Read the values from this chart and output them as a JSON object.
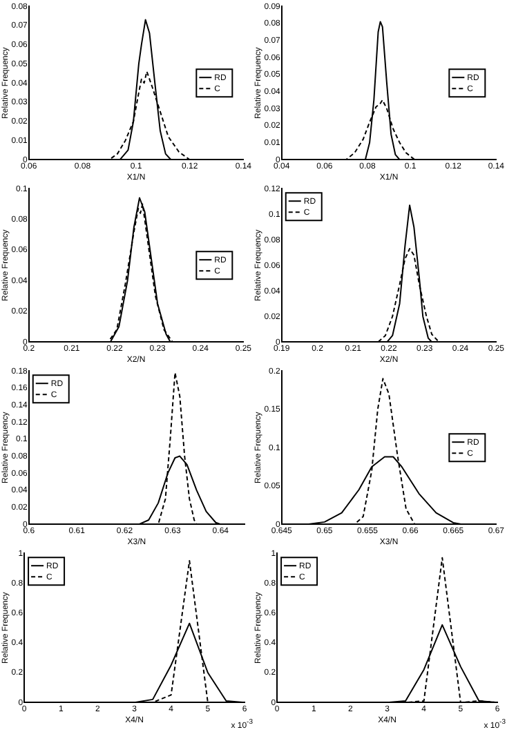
{
  "chart_data": [
    {
      "type": "line",
      "xlabel": "X1/N",
      "ylabel": "Relative Frequency",
      "xlim": [
        0.06,
        0.14
      ],
      "xticks": [
        0.06,
        0.08,
        0.1,
        0.12,
        0.14
      ],
      "ylim": [
        0,
        0.08
      ],
      "yticks": [
        0,
        0.01,
        0.02,
        0.03,
        0.04,
        0.05,
        0.06,
        0.07,
        0.08
      ],
      "legend": "right",
      "series": [
        {
          "name": "RD",
          "color": "#000000",
          "line_style": "solid",
          "x": [
            0.06,
            0.094,
            0.097,
            0.099,
            0.101,
            0.102,
            0.1035,
            0.105,
            0.107,
            0.109,
            0.111,
            0.113,
            0.14
          ],
          "values": [
            0,
            0,
            0.005,
            0.02,
            0.05,
            0.06,
            0.073,
            0.066,
            0.04,
            0.015,
            0.003,
            0,
            0
          ]
        },
        {
          "name": "C",
          "color": "#000000",
          "line_style": "dashed",
          "x": [
            0.06,
            0.09,
            0.093,
            0.096,
            0.099,
            0.101,
            0.102,
            0.103,
            0.104,
            0.106,
            0.109,
            0.112,
            0.116,
            0.12,
            0.14
          ],
          "values": [
            0,
            0,
            0.003,
            0.01,
            0.02,
            0.035,
            0.042,
            0.04,
            0.046,
            0.038,
            0.025,
            0.012,
            0.004,
            0,
            0
          ]
        }
      ]
    },
    {
      "type": "line",
      "xlabel": "X1/N",
      "ylabel": "Relative Frequency",
      "xlim": [
        0.04,
        0.14
      ],
      "xticks": [
        0.04,
        0.06,
        0.08,
        0.1,
        0.12,
        0.14
      ],
      "ylim": [
        0,
        0.09
      ],
      "yticks": [
        0,
        0.01,
        0.02,
        0.03,
        0.04,
        0.05,
        0.06,
        0.07,
        0.08,
        0.09
      ],
      "legend": "right",
      "series": [
        {
          "name": "RD",
          "color": "#000000",
          "line_style": "solid",
          "x": [
            0.04,
            0.079,
            0.081,
            0.083,
            0.085,
            0.086,
            0.087,
            0.089,
            0.091,
            0.093,
            0.095,
            0.14
          ],
          "values": [
            0,
            0,
            0.01,
            0.035,
            0.075,
            0.081,
            0.078,
            0.045,
            0.015,
            0.003,
            0,
            0
          ]
        },
        {
          "name": "C",
          "color": "#000000",
          "line_style": "dashed",
          "x": [
            0.04,
            0.07,
            0.074,
            0.078,
            0.081,
            0.084,
            0.086,
            0.087,
            0.089,
            0.092,
            0.095,
            0.098,
            0.102,
            0.14
          ],
          "values": [
            0,
            0,
            0.004,
            0.012,
            0.022,
            0.031,
            0.033,
            0.035,
            0.03,
            0.018,
            0.01,
            0.004,
            0,
            0
          ]
        }
      ]
    },
    {
      "type": "line",
      "xlabel": "X2/N",
      "ylabel": "Relative Frequency",
      "xlim": [
        0.2,
        0.25
      ],
      "xticks": [
        0.2,
        0.21,
        0.22,
        0.23,
        0.24,
        0.25
      ],
      "ylim": [
        0,
        0.1
      ],
      "yticks": [
        0,
        0.02,
        0.04,
        0.06,
        0.08,
        0.1
      ],
      "legend": "right",
      "series": [
        {
          "name": "RD",
          "color": "#000000",
          "line_style": "solid",
          "x": [
            0.2,
            0.219,
            0.221,
            0.223,
            0.2245,
            0.2258,
            0.227,
            0.2285,
            0.23,
            0.232,
            0.233,
            0.25
          ],
          "values": [
            0,
            0,
            0.01,
            0.04,
            0.075,
            0.094,
            0.085,
            0.055,
            0.025,
            0.005,
            0,
            0
          ]
        },
        {
          "name": "C",
          "color": "#000000",
          "line_style": "dashed",
          "x": [
            0.2,
            0.2185,
            0.2205,
            0.2225,
            0.2245,
            0.2255,
            0.226,
            0.2265,
            0.228,
            0.2295,
            0.2315,
            0.2335,
            0.25
          ],
          "values": [
            0,
            0,
            0.008,
            0.038,
            0.072,
            0.087,
            0.084,
            0.09,
            0.06,
            0.03,
            0.008,
            0,
            0
          ]
        }
      ]
    },
    {
      "type": "line",
      "xlabel": "X2/N",
      "ylabel": "Relative Frequency",
      "xlim": [
        0.19,
        0.25
      ],
      "xticks": [
        0.19,
        0.2,
        0.21,
        0.22,
        0.23,
        0.24,
        0.25
      ],
      "ylim": [
        0,
        0.12
      ],
      "yticks": [
        0,
        0.02,
        0.04,
        0.06,
        0.08,
        0.1,
        0.12
      ],
      "legend": "top left",
      "series": [
        {
          "name": "RD",
          "color": "#000000",
          "line_style": "solid",
          "x": [
            0.19,
            0.2195,
            0.221,
            0.223,
            0.2245,
            0.2258,
            0.227,
            0.2285,
            0.2295,
            0.231,
            0.232,
            0.25
          ],
          "values": [
            0,
            0,
            0.005,
            0.03,
            0.075,
            0.107,
            0.09,
            0.05,
            0.02,
            0.003,
            0,
            0
          ]
        },
        {
          "name": "C",
          "color": "#000000",
          "line_style": "dashed",
          "x": [
            0.19,
            0.217,
            0.219,
            0.221,
            0.223,
            0.2245,
            0.2258,
            0.227,
            0.2285,
            0.2305,
            0.232,
            0.234,
            0.25
          ],
          "values": [
            0,
            0,
            0.005,
            0.02,
            0.045,
            0.065,
            0.073,
            0.068,
            0.045,
            0.02,
            0.006,
            0,
            0
          ]
        }
      ]
    },
    {
      "type": "line",
      "xlabel": "X3/N",
      "ylabel": "Relative Frequency",
      "xlim": [
        0.6,
        0.645
      ],
      "xticks": [
        0.6,
        0.61,
        0.62,
        0.63,
        0.64
      ],
      "ylim": [
        0,
        0.18
      ],
      "yticks": [
        0,
        0.02,
        0.04,
        0.06,
        0.08,
        0.1,
        0.12,
        0.14,
        0.16,
        0.18
      ],
      "legend": "top left",
      "series": [
        {
          "name": "RD",
          "color": "#000000",
          "line_style": "solid",
          "x": [
            0.6,
            0.623,
            0.625,
            0.627,
            0.629,
            0.6305,
            0.6315,
            0.633,
            0.635,
            0.637,
            0.639,
            0.64,
            0.645
          ],
          "values": [
            0,
            0,
            0.005,
            0.025,
            0.06,
            0.078,
            0.08,
            0.07,
            0.04,
            0.015,
            0.002,
            0,
            0
          ]
        },
        {
          "name": "C",
          "color": "#000000",
          "line_style": "dashed",
          "x": [
            0.6,
            0.627,
            0.6285,
            0.6295,
            0.6305,
            0.6315,
            0.6325,
            0.6335,
            0.6345,
            0.635,
            0.645
          ],
          "values": [
            0,
            0,
            0.03,
            0.1,
            0.178,
            0.15,
            0.08,
            0.03,
            0.005,
            0,
            0
          ]
        }
      ]
    },
    {
      "type": "line",
      "xlabel": "X3/N",
      "ylabel": "Relative Frequency",
      "xlim": [
        0.645,
        0.67
      ],
      "xticks": [
        0.645,
        0.65,
        0.655,
        0.66,
        0.665,
        0.67
      ],
      "ylim": [
        0,
        0.2
      ],
      "yticks": [
        0,
        0.05,
        0.1,
        0.15,
        0.2
      ],
      "legend": "right",
      "series": [
        {
          "name": "RD",
          "color": "#000000",
          "line_style": "solid",
          "x": [
            0.645,
            0.648,
            0.65,
            0.652,
            0.654,
            0.6555,
            0.657,
            0.658,
            0.659,
            0.661,
            0.663,
            0.665,
            0.666,
            0.67
          ],
          "values": [
            0,
            0,
            0.003,
            0.015,
            0.045,
            0.075,
            0.088,
            0.088,
            0.075,
            0.04,
            0.015,
            0.002,
            0,
            0
          ]
        },
        {
          "name": "C",
          "color": "#000000",
          "line_style": "dashed",
          "x": [
            0.645,
            0.6535,
            0.6545,
            0.6555,
            0.6562,
            0.6568,
            0.6575,
            0.6585,
            0.6595,
            0.6605,
            0.67
          ],
          "values": [
            0,
            0,
            0.01,
            0.07,
            0.15,
            0.19,
            0.17,
            0.09,
            0.02,
            0,
            0
          ]
        }
      ]
    },
    {
      "type": "line",
      "xlabel": "X4/N",
      "ylabel": "Relative Frequency",
      "xlim": [
        0,
        6
      ],
      "xticks": [
        0,
        1,
        2,
        3,
        4,
        5,
        6
      ],
      "ylim": [
        0,
        1
      ],
      "yticks": [
        0,
        0.2,
        0.4,
        0.6,
        0.8,
        1
      ],
      "legend": "top left",
      "annotations": [
        "x 10$^{-3}$"
      ],
      "series": [
        {
          "name": "RD",
          "color": "#000000",
          "line_style": "solid",
          "x": [
            0,
            3,
            3.5,
            4,
            4.5,
            5,
            5.5,
            6
          ],
          "values": [
            0,
            0,
            0.02,
            0.25,
            0.53,
            0.2,
            0.01,
            0
          ]
        },
        {
          "name": "C",
          "color": "#000000",
          "line_style": "dashed",
          "x": [
            0,
            3.5,
            4,
            4.5,
            5,
            6
          ],
          "values": [
            0,
            0,
            0.05,
            0.95,
            0,
            0
          ]
        }
      ]
    },
    {
      "type": "line",
      "xlabel": "X4/N",
      "ylabel": "Relative Frequency",
      "xlim": [
        0,
        6
      ],
      "xticks": [
        0,
        1,
        2,
        3,
        4,
        5,
        6
      ],
      "ylim": [
        0,
        1
      ],
      "yticks": [
        0,
        0.2,
        0.4,
        0.6,
        0.8,
        1
      ],
      "legend": "top left",
      "annotations": [
        "x 10$^{-3}$"
      ],
      "series": [
        {
          "name": "RD",
          "color": "#000000",
          "line_style": "solid",
          "x": [
            0,
            3,
            3.5,
            4,
            4.5,
            5,
            5.5,
            6
          ],
          "values": [
            0,
            0,
            0.01,
            0.22,
            0.52,
            0.24,
            0.01,
            0
          ]
        },
        {
          "name": "C",
          "color": "#000000",
          "line_style": "dashed",
          "x": [
            0,
            3.5,
            4,
            4.5,
            5,
            5.5,
            6
          ],
          "values": [
            0,
            0,
            0.01,
            0.97,
            0,
            0.01,
            0
          ]
        }
      ]
    }
  ]
}
